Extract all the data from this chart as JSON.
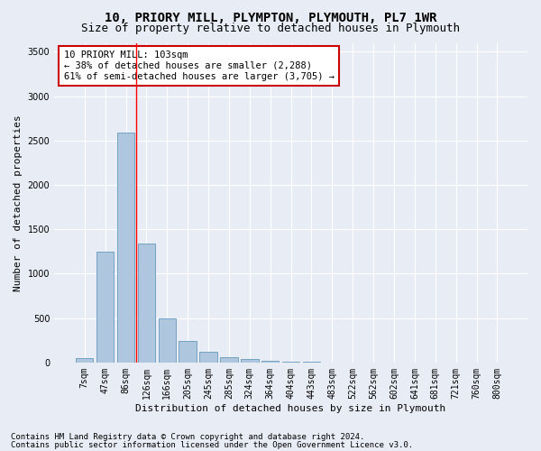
{
  "title1": "10, PRIORY MILL, PLYMPTON, PLYMOUTH, PL7 1WR",
  "title2": "Size of property relative to detached houses in Plymouth",
  "xlabel": "Distribution of detached houses by size in Plymouth",
  "ylabel": "Number of detached properties",
  "categories": [
    "7sqm",
    "47sqm",
    "86sqm",
    "126sqm",
    "166sqm",
    "205sqm",
    "245sqm",
    "285sqm",
    "324sqm",
    "364sqm",
    "404sqm",
    "443sqm",
    "483sqm",
    "522sqm",
    "562sqm",
    "602sqm",
    "641sqm",
    "681sqm",
    "721sqm",
    "760sqm",
    "800sqm"
  ],
  "values": [
    50,
    1250,
    2590,
    1340,
    500,
    240,
    120,
    55,
    35,
    20,
    10,
    5,
    3,
    2,
    2,
    1,
    1,
    1,
    1,
    1,
    1
  ],
  "bar_color": "#aec6de",
  "bar_edge_color": "#6699bb",
  "red_line_x": 2.5,
  "annotation_line1": "10 PRIORY MILL: 103sqm",
  "annotation_line2": "← 38% of detached houses are smaller (2,288)",
  "annotation_line3": "61% of semi-detached houses are larger (3,705) →",
  "annotation_box_facecolor": "#ffffff",
  "annotation_box_edgecolor": "#cc0000",
  "ylim": [
    0,
    3600
  ],
  "yticks": [
    0,
    500,
    1000,
    1500,
    2000,
    2500,
    3000,
    3500
  ],
  "footer1": "Contains HM Land Registry data © Crown copyright and database right 2024.",
  "footer2": "Contains public sector information licensed under the Open Government Licence v3.0.",
  "bg_color": "#e8edf5",
  "plot_bg_color": "#e8edf5",
  "grid_color": "#ffffff",
  "title1_fontsize": 10,
  "title2_fontsize": 9,
  "axis_label_fontsize": 8,
  "tick_fontsize": 7,
  "annotation_fontsize": 7.5,
  "footer_fontsize": 6.5
}
